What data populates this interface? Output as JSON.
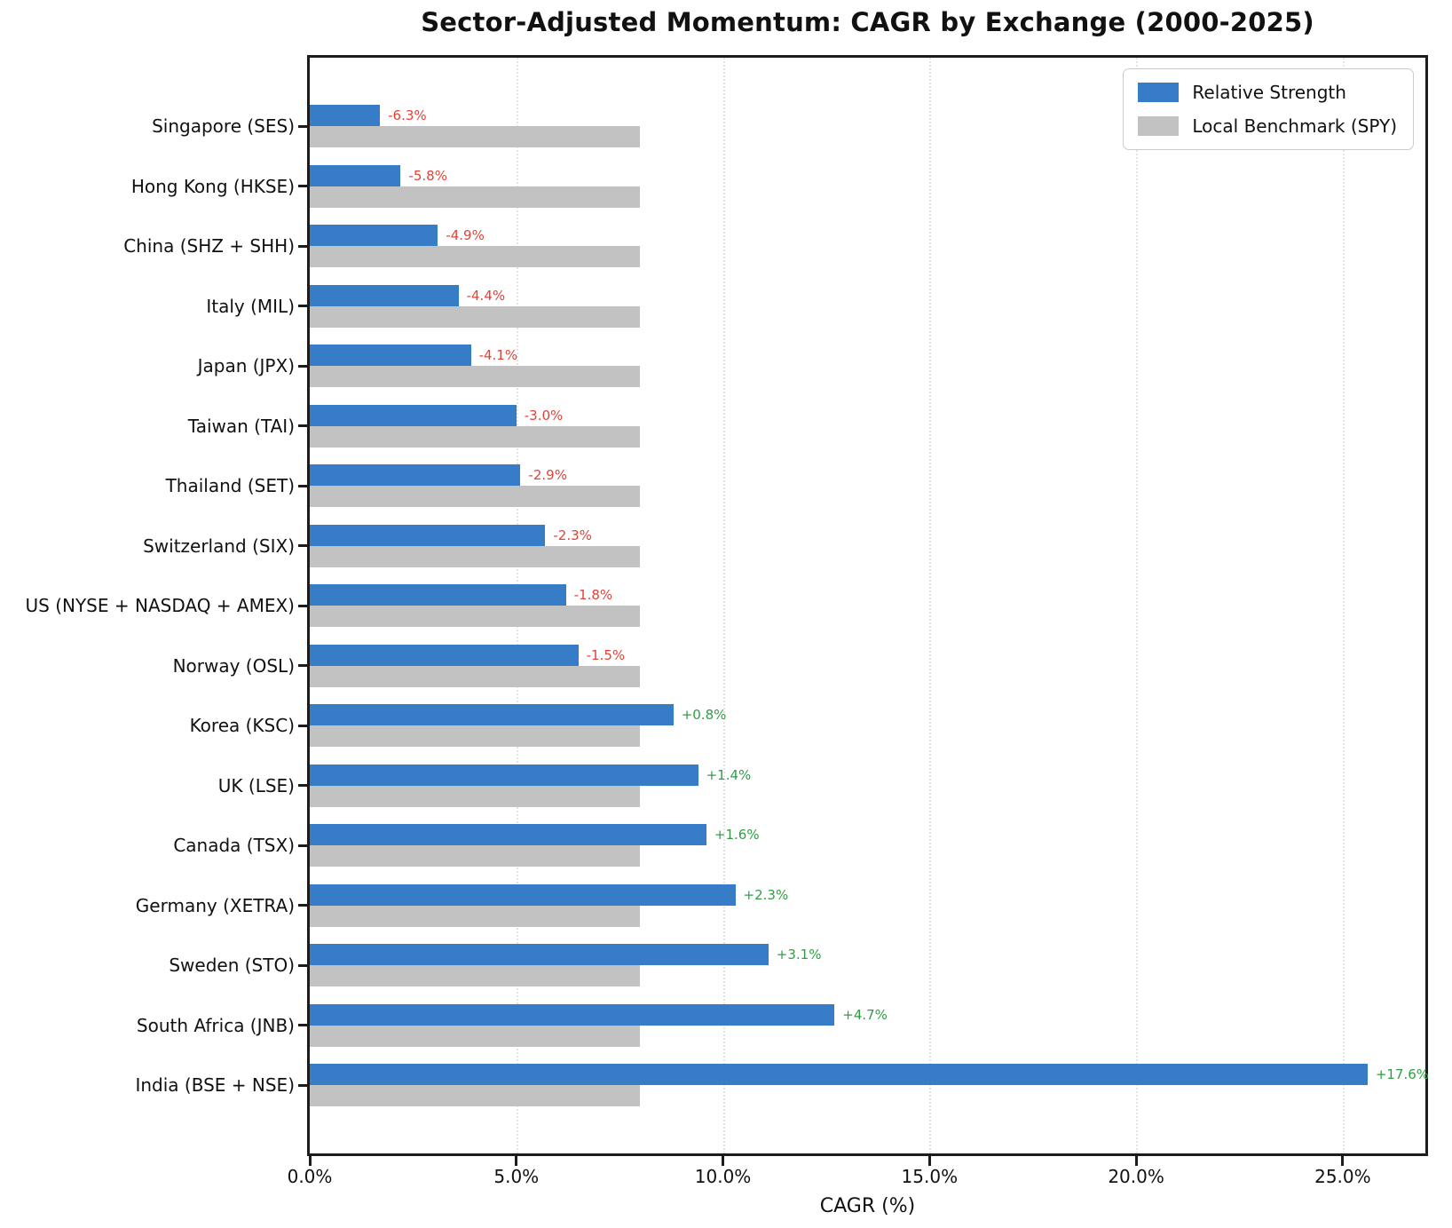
{
  "chart_data": {
    "type": "bar",
    "orientation": "horizontal",
    "title": "Sector-Adjusted Momentum: CAGR by Exchange (2000-2025)",
    "xlabel": "CAGR (%)",
    "xlim": [
      0,
      27.0
    ],
    "xticks": [
      {
        "value": 0,
        "label": "0.0%"
      },
      {
        "value": 5,
        "label": "5.0%"
      },
      {
        "value": 10,
        "label": "10.0%"
      },
      {
        "value": 15,
        "label": "15.0%"
      },
      {
        "value": 20,
        "label": "20.0%"
      },
      {
        "value": 25,
        "label": "25.0%"
      }
    ],
    "grid": "vertical dotted gridlines at x ticks",
    "legend_position": "top-right inside plot",
    "categories": [
      "Singapore (SES)",
      "Hong Kong (HKSE)",
      "China (SHZ + SHH)",
      "Italy (MIL)",
      "Japan (JPX)",
      "Taiwan (TAI)",
      "Thailand (SET)",
      "Switzerland (SIX)",
      "US (NYSE + NASDAQ + AMEX)",
      "Norway (OSL)",
      "Korea (KSC)",
      "UK (LSE)",
      "Canada (TSX)",
      "Germany (XETRA)",
      "Sweden (STO)",
      "South Africa (JNB)",
      "India (BSE + NSE)"
    ],
    "series": [
      {
        "name": "Relative Strength",
        "color": "#377cc7",
        "values": [
          1.7,
          2.2,
          3.1,
          3.6,
          3.9,
          5.0,
          5.1,
          5.7,
          6.2,
          6.5,
          8.8,
          9.4,
          9.6,
          10.3,
          11.1,
          12.7,
          25.6
        ]
      },
      {
        "name": "Local Benchmark (SPY)",
        "color": "#c2c2c2",
        "values": [
          8.0,
          8.0,
          8.0,
          8.0,
          8.0,
          8.0,
          8.0,
          8.0,
          8.0,
          8.0,
          8.0,
          8.0,
          8.0,
          8.0,
          8.0,
          8.0,
          8.0
        ]
      }
    ],
    "annotations": {
      "labels": [
        "-6.3%",
        "-5.8%",
        "-4.9%",
        "-4.4%",
        "-4.1%",
        "-3.0%",
        "-2.9%",
        "-2.3%",
        "-1.8%",
        "-1.5%",
        "+0.8%",
        "+1.4%",
        "+1.6%",
        "+2.3%",
        "+3.1%",
        "+4.7%",
        "+17.6%"
      ],
      "negative_color": "#e14338",
      "positive_color": "#2f9e44"
    },
    "colors": {
      "spine": "#1c1c1c",
      "gridline": "#e4e4e4",
      "text": "#111111",
      "legend_border": "#cccccc"
    }
  }
}
